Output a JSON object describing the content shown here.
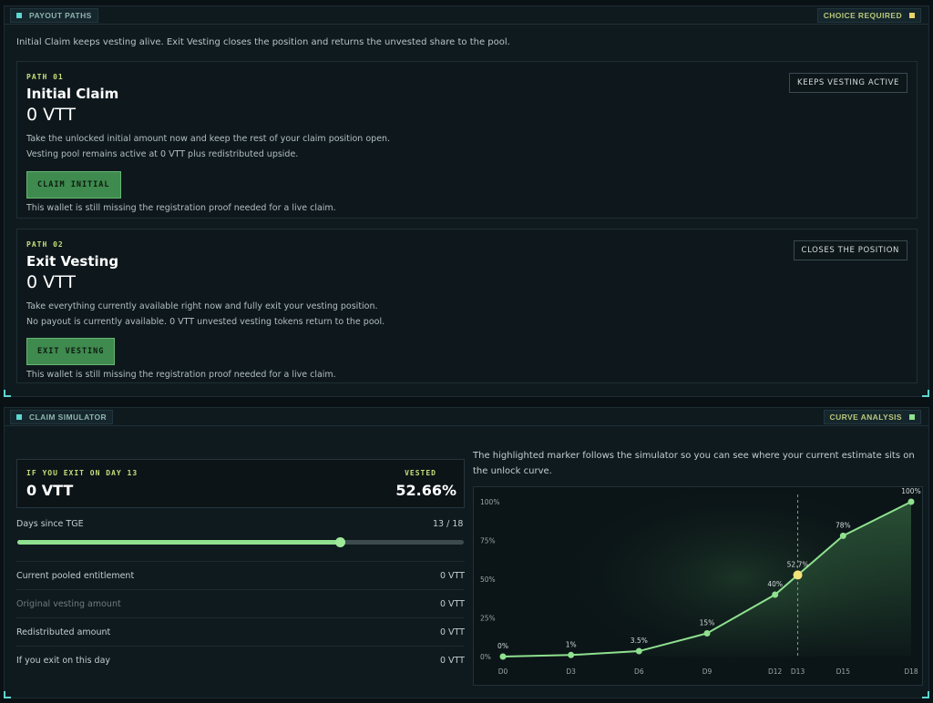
{
  "payout": {
    "tag_left": "PAYOUT PATHS",
    "tag_right": "CHOICE REQUIRED",
    "intro": "Initial Claim keeps vesting alive. Exit Vesting closes the position and returns the unvested share to the pool.",
    "paths": [
      {
        "tag": "PATH 01",
        "title": "Initial Claim",
        "amount": "0 VTT",
        "desc1": "Take the unlocked initial amount now and keep the rest of your claim position open.",
        "desc2": "Vesting pool remains active at 0 VTT plus redistributed upside.",
        "button": "CLAIM INITIAL",
        "warning": "This wallet is still missing the registration proof needed for a live claim.",
        "badge": "KEEPS VESTING ACTIVE"
      },
      {
        "tag": "PATH 02",
        "title": "Exit Vesting",
        "amount": "0 VTT",
        "desc1": "Take everything currently available right now and fully exit your vesting position.",
        "desc2": "No payout is currently available. 0 VTT unvested vesting tokens return to the pool.",
        "button": "EXIT VESTING",
        "warning": "This wallet is still missing the registration proof needed for a live claim.",
        "badge": "CLOSES THE POSITION"
      }
    ]
  },
  "simulator": {
    "tag_left": "CLAIM SIMULATOR",
    "tag_right": "CURVE ANALYSIS",
    "exit_label": "IF YOU EXIT ON DAY 13",
    "exit_value": "0 VTT",
    "vested_label": "VESTED",
    "vested_value": "52.66%",
    "days_label": "Days since TGE",
    "days_value": "13 / 18",
    "days_current": 13,
    "days_max": 18,
    "stats": [
      {
        "label": "Current pooled entitlement",
        "value": "0 VTT",
        "dim": false
      },
      {
        "label": "Original vesting amount",
        "value": "0 VTT",
        "dim": true
      },
      {
        "label": "Redistributed amount",
        "value": "0 VTT",
        "dim": false
      },
      {
        "label": "If you exit on this day",
        "value": "0 VTT",
        "dim": false
      }
    ],
    "chart_note": "The highlighted marker follows the simulator so you can see where your current estimate sits on the unlock curve."
  },
  "colors": {
    "accent": "#5fd6d0",
    "curve": "#8fe08f",
    "highlight": "#f3e27a",
    "label_yellow": "#c7dd7a",
    "button": "#3f8a4e"
  },
  "chart_data": {
    "type": "line",
    "x": [
      0,
      3,
      6,
      9,
      12,
      13,
      15,
      18
    ],
    "x_labels": [
      "D0",
      "D3",
      "D6",
      "D9",
      "D12",
      "D13",
      "D15",
      "D18"
    ],
    "values": [
      0,
      1,
      3.5,
      15,
      40,
      52.7,
      78,
      100
    ],
    "point_labels": [
      "0%",
      "1%",
      "3.5%",
      "15%",
      "40%",
      "52.7%",
      "78%",
      "100%"
    ],
    "highlight_index": 5,
    "ylim": [
      0,
      100
    ],
    "y_ticks": [
      "0%",
      "25%",
      "50%",
      "75%",
      "100%"
    ],
    "grid": false
  }
}
